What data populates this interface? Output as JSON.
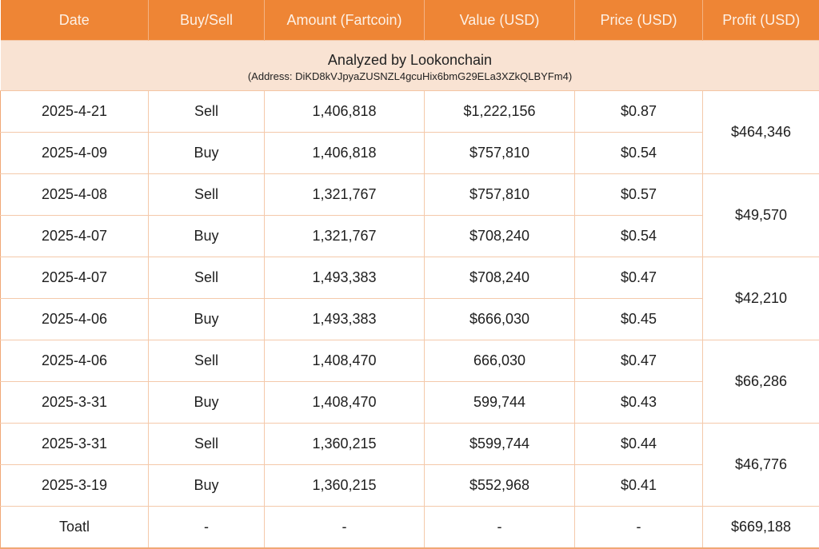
{
  "table": {
    "headers": [
      "Date",
      "Buy/Sell",
      "Amount (Fartcoin)",
      "Value (USD)",
      "Price (USD)",
      "Profit (USD)"
    ],
    "banner": {
      "title": "Analyzed by Lookonchain",
      "address": "(Address: DiKD8kVJpyaZUSNZL4gcuHix6bmG29ELa3XZkQLBYFm4)"
    },
    "rows": [
      {
        "date": "2025-4-21",
        "side": "Sell",
        "amount": "1,406,818",
        "value": "$1,222,156",
        "price": "$0.87"
      },
      {
        "date": "2025-4-09",
        "side": "Buy",
        "amount": "1,406,818",
        "value": "$757,810",
        "price": "$0.54"
      },
      {
        "date": "2025-4-08",
        "side": "Sell",
        "amount": "1,321,767",
        "value": "$757,810",
        "price": "$0.57"
      },
      {
        "date": "2025-4-07",
        "side": "Buy",
        "amount": "1,321,767",
        "value": "$708,240",
        "price": "$0.54"
      },
      {
        "date": "2025-4-07",
        "side": "Sell",
        "amount": "1,493,383",
        "value": "$708,240",
        "price": "$0.47"
      },
      {
        "date": "2025-4-06",
        "side": "Buy",
        "amount": "1,493,383",
        "value": "$666,030",
        "price": "$0.45"
      },
      {
        "date": "2025-4-06",
        "side": "Sell",
        "amount": "1,408,470",
        "value": "666,030",
        "price": "$0.47"
      },
      {
        "date": "2025-3-31",
        "side": "Buy",
        "amount": "1,408,470",
        "value": "599,744",
        "price": "$0.43"
      },
      {
        "date": "2025-3-31",
        "side": "Sell",
        "amount": "1,360,215",
        "value": "$599,744",
        "price": "$0.44"
      },
      {
        "date": "2025-3-19",
        "side": "Buy",
        "amount": "1,360,215",
        "value": "$552,968",
        "price": "$0.41"
      }
    ],
    "profits": [
      "$464,346",
      "$49,570",
      "$42,210",
      "$66,286",
      "$46,776"
    ],
    "total": {
      "label": "Toatl",
      "side": "-",
      "amount": "-",
      "value": "-",
      "price": "-",
      "profit": "$669,188"
    }
  },
  "colors": {
    "header_bg": "#ee8535",
    "banner_bg": "#f9e3d3",
    "sell": "#de2b2b",
    "buy": "#2aa34a",
    "profit": "#2aa34a",
    "grid": "#f4c9aa"
  }
}
